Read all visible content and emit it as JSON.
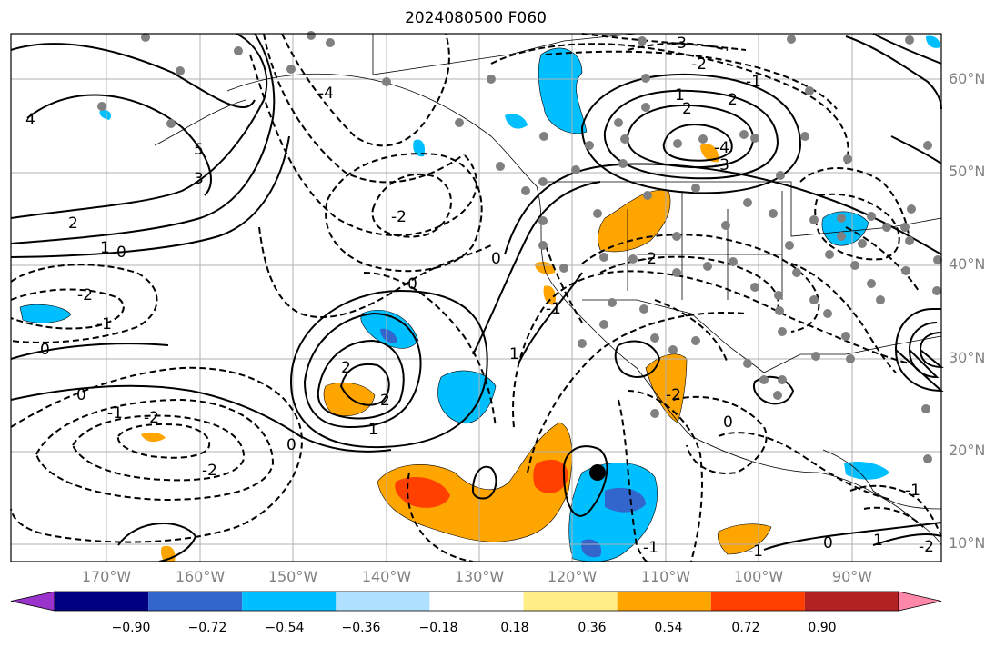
{
  "title": "2024080500 F060",
  "lat_labels": [
    "60°N",
    "50°N",
    "40°N",
    "30°N",
    "20°N",
    "10°N"
  ],
  "lon_labels": [
    "170°W",
    "160°W",
    "150°W",
    "140°W",
    "130°W",
    "120°W",
    "110°W",
    "100°W",
    "90°W"
  ],
  "colorbar": {
    "colors": [
      "#9933cc",
      "#000080",
      "#3366cc",
      "#00bfff",
      "#b0e0ff",
      "#ffffff",
      "#ffee88",
      "#ffa500",
      "#ff4000",
      "#b22222",
      "#ff88aa"
    ],
    "ticks": [
      "−0.90",
      "−0.72",
      "−0.54",
      "−0.36",
      "−0.18",
      "0.18",
      "0.36",
      "0.54",
      "0.72",
      "0.90"
    ]
  },
  "contour_labels": [
    "-3",
    "-2",
    "-4",
    "4",
    "5",
    "3",
    "2",
    "1",
    "0",
    "-2",
    "-1",
    "0",
    "-1",
    "-2",
    "-2",
    "0",
    "1",
    "2",
    "2",
    "1",
    "-2",
    "2",
    "1",
    "2",
    "-4",
    "-3",
    "-1",
    "-2",
    "0",
    "0",
    "-1",
    "-2",
    "0",
    "-1",
    "0",
    "-2",
    "-1",
    "-1",
    "0",
    "1"
  ],
  "colors": {
    "negative_fill": "#00bfff",
    "positive_fill": "#ffa500",
    "strong_positive": "#ff4000",
    "strong_negative": "#3366cc",
    "station": "#808080",
    "grid": "#b0b0b0"
  }
}
